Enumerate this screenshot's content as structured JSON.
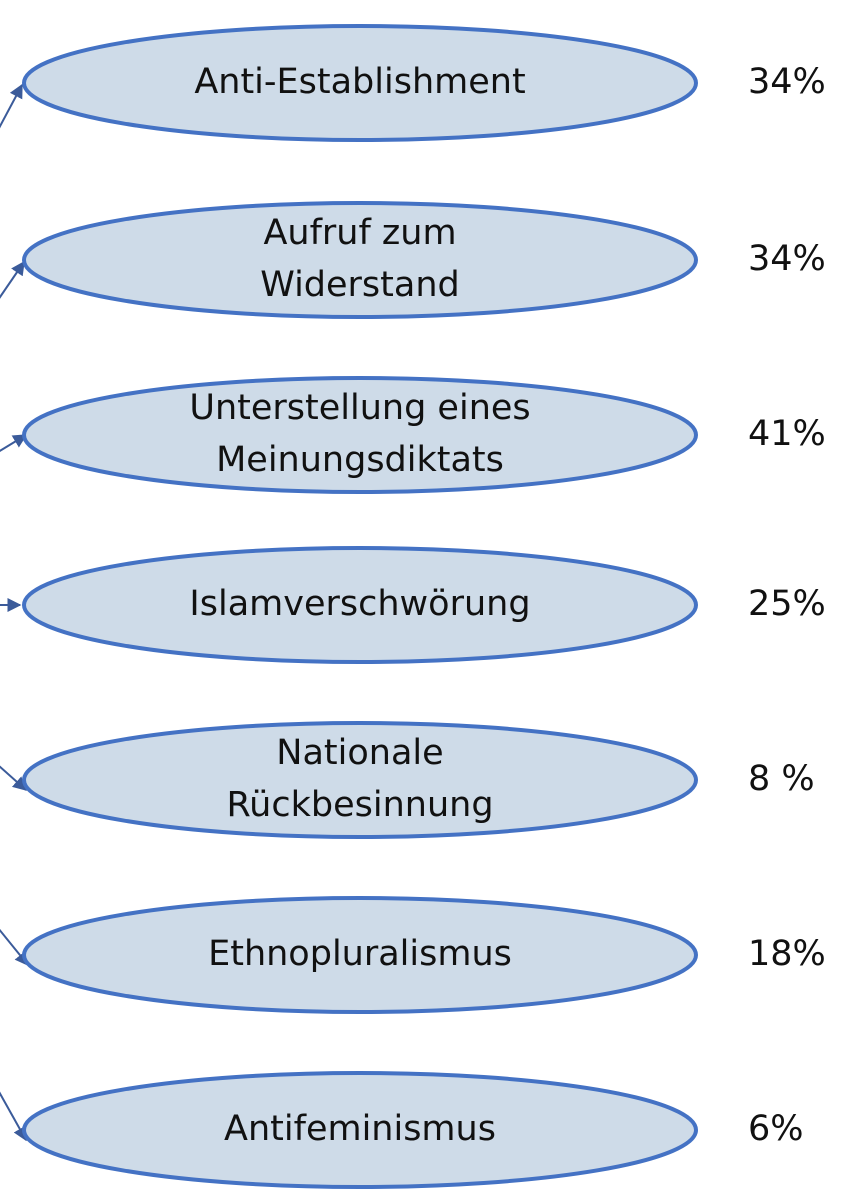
{
  "nodes": [
    {
      "label": [
        "Anti-Establishment"
      ],
      "share": "34%"
    },
    {
      "label": [
        "Aufruf zum",
        "Widerstand"
      ],
      "share": "34%"
    },
    {
      "label": [
        "Unterstellung eines",
        "Meinungsdiktats"
      ],
      "share": "41%"
    },
    {
      "label": [
        "Islamverschwörung"
      ],
      "share": "25%"
    },
    {
      "label": [
        "Nationale",
        "Rückbesinnung"
      ],
      "share": "8 %"
    },
    {
      "label": [
        "Ethnopluralismus"
      ],
      "share": "18%"
    },
    {
      "label": [
        "Antifeminismus"
      ],
      "share": "6%"
    }
  ]
}
